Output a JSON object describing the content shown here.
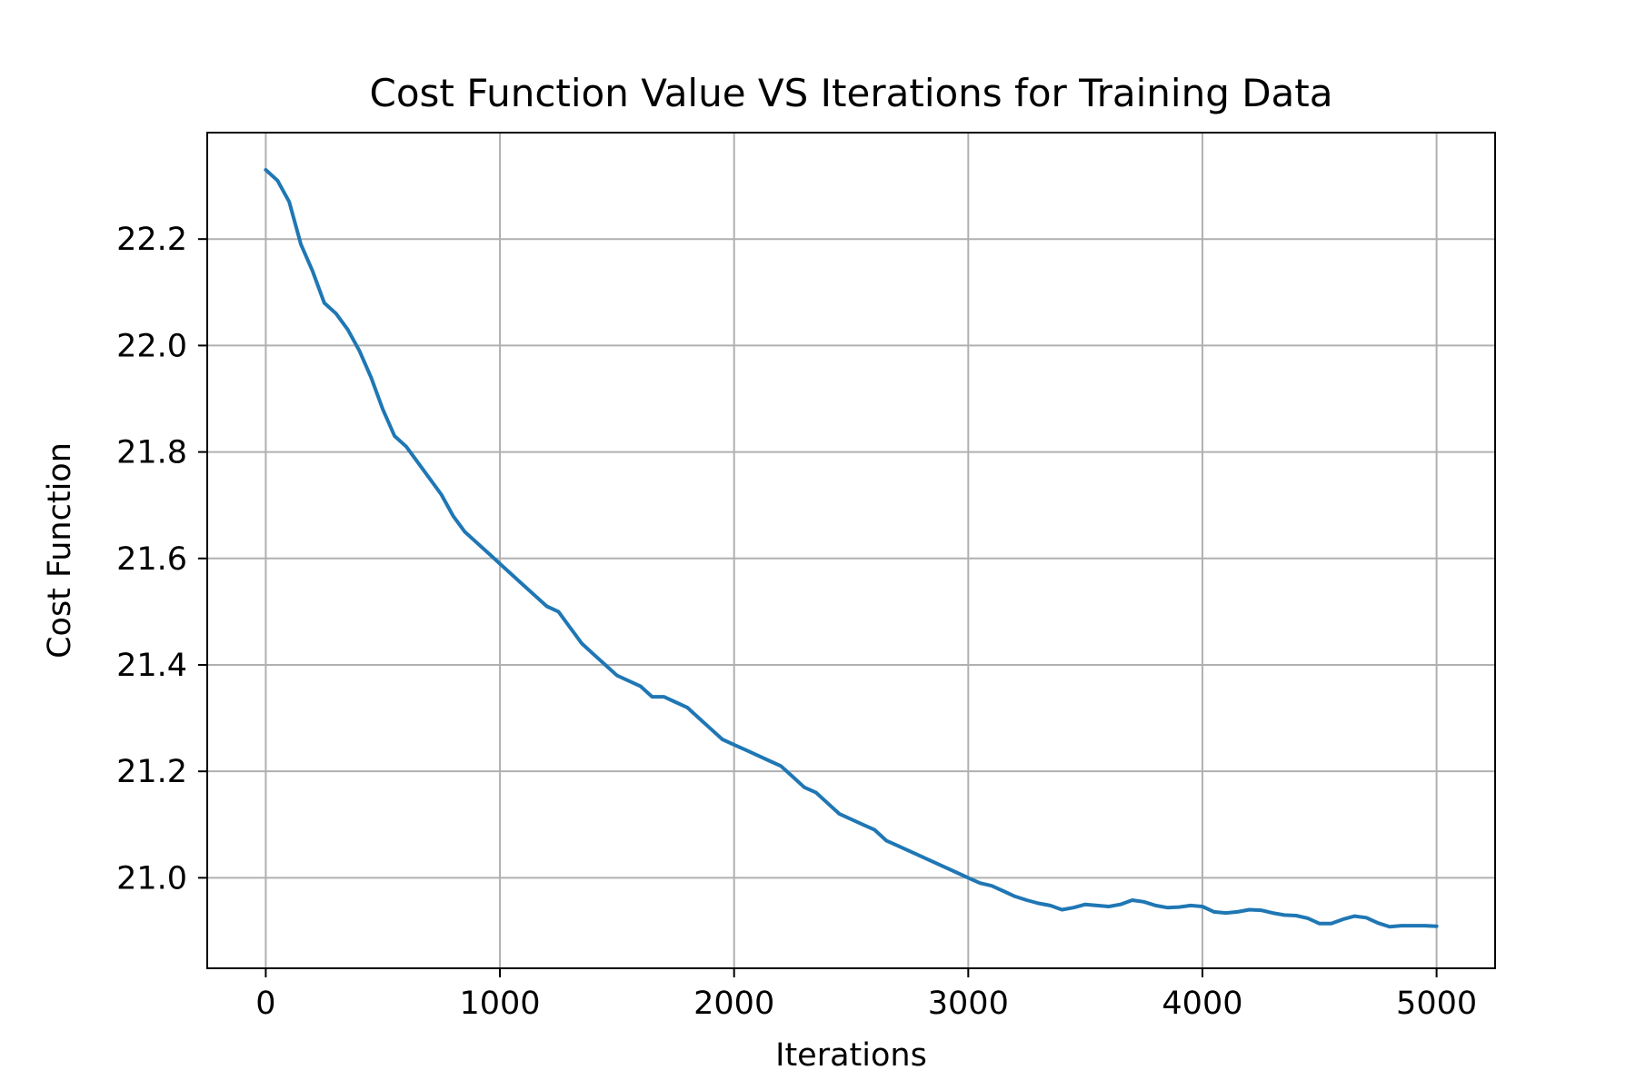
{
  "chart_data": {
    "type": "line",
    "title": "Cost Function Value VS Iterations for Training Data",
    "xlabel": "Iterations",
    "ylabel": "Cost Function",
    "xlim": [
      -250,
      5250
    ],
    "ylim": [
      20.83,
      22.4
    ],
    "xticks": [
      0,
      1000,
      2000,
      3000,
      4000,
      5000
    ],
    "xtick_labels": [
      "0",
      "1000",
      "2000",
      "3000",
      "4000",
      "5000"
    ],
    "yticks": [
      21.0,
      21.2,
      21.4,
      21.6,
      21.8,
      22.0,
      22.2
    ],
    "ytick_labels": [
      "21.0",
      "21.2",
      "21.4",
      "21.6",
      "21.8",
      "22.0",
      "22.2"
    ],
    "grid": true,
    "line_color": "#1f77b4",
    "series": [
      {
        "x": [
          0,
          50,
          100,
          150,
          200,
          250,
          300,
          350,
          400,
          450,
          500,
          550,
          600,
          650,
          700,
          750,
          800,
          850,
          900,
          950,
          1000,
          1050,
          1100,
          1150,
          1200,
          1250,
          1300,
          1350,
          1400,
          1450,
          1500,
          1550,
          1600,
          1650,
          1700,
          1750,
          1800,
          1850,
          1900,
          1950,
          2000,
          2050,
          2100,
          2150,
          2200,
          2250,
          2300,
          2350,
          2400,
          2450,
          2500,
          2550,
          2600,
          2650,
          2700,
          2750,
          2800,
          2850,
          2900,
          2950,
          3000,
          3050,
          3100,
          3150,
          3200,
          3250,
          3300,
          3350,
          3400,
          3450,
          3500,
          3550,
          3600,
          3650,
          3700,
          3750,
          3800,
          3850,
          3900,
          3950,
          4000,
          4050,
          4100,
          4150,
          4200,
          4250,
          4300,
          4350,
          4400,
          4450,
          4500,
          4550,
          4600,
          4650,
          4700,
          4750,
          4800,
          4850,
          4900,
          4950,
          5000
        ],
        "y": [
          22.33,
          22.31,
          22.27,
          22.19,
          22.14,
          22.08,
          22.06,
          22.03,
          21.99,
          21.94,
          21.88,
          21.83,
          21.81,
          21.78,
          21.75,
          21.72,
          21.68,
          21.65,
          21.63,
          21.61,
          21.59,
          21.57,
          21.55,
          21.53,
          21.51,
          21.5,
          21.47,
          21.44,
          21.42,
          21.4,
          21.38,
          21.37,
          21.36,
          21.34,
          21.34,
          21.33,
          21.32,
          21.3,
          21.28,
          21.26,
          21.25,
          21.24,
          21.23,
          21.22,
          21.21,
          21.19,
          21.17,
          21.16,
          21.14,
          21.12,
          21.11,
          21.1,
          21.09,
          21.07,
          21.06,
          21.05,
          21.04,
          21.03,
          21.02,
          21.01,
          21.0,
          20.99,
          20.985,
          20.975,
          20.965,
          20.958,
          20.952,
          20.948,
          20.94,
          20.944,
          20.95,
          20.948,
          20.946,
          20.95,
          20.958,
          20.955,
          20.948,
          20.944,
          20.945,
          20.948,
          20.946,
          20.936,
          20.934,
          20.936,
          20.94,
          20.939,
          20.934,
          20.93,
          20.929,
          20.924,
          20.914,
          20.914,
          20.922,
          20.928,
          20.925,
          20.915,
          20.908,
          20.91,
          20.91,
          20.91,
          20.909
        ]
      }
    ]
  }
}
